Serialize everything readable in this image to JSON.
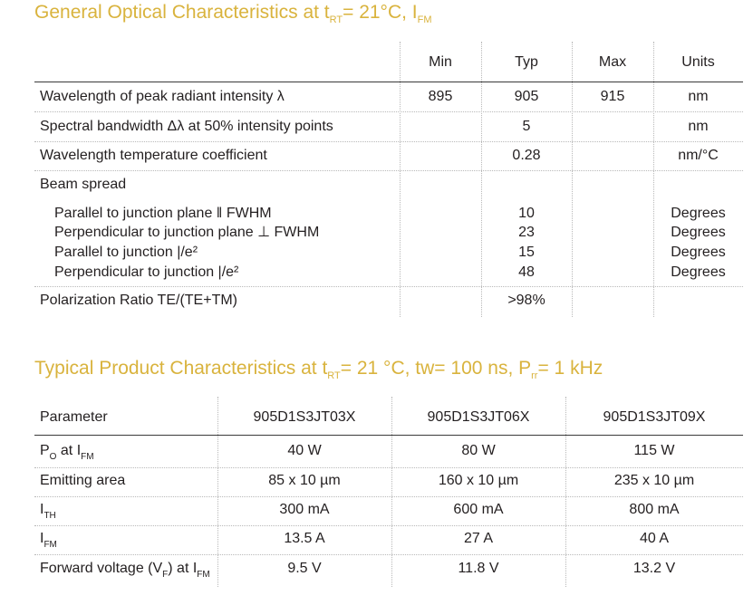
{
  "optical": {
    "title_main": "General Optical Characteristics at t",
    "title_sub1": "RT",
    "title_mid": "= 21°C, I",
    "title_sub2": "FM",
    "headers": {
      "min": "Min",
      "typ": "Typ",
      "max": "Max",
      "units": "Units"
    },
    "rows": [
      {
        "label": "Wavelength of peak radiant intensity λ",
        "min": "895",
        "typ": "905",
        "max": "915",
        "units": "nm"
      },
      {
        "label": "Spectral bandwidth Δλ at 50% intensity points",
        "min": "",
        "typ": "5",
        "max": "",
        "units": "nm"
      },
      {
        "label": "Wavelength temperature coefficient",
        "min": "",
        "typ": "0.28",
        "max": "",
        "units": "nm/°C"
      }
    ],
    "beam": {
      "label": "Beam spread",
      "items": [
        {
          "label": "Parallel to junction plane ‖ FWHM",
          "typ": "10",
          "units": "Degrees"
        },
        {
          "label": "Perpendicular to junction plane ⊥ FWHM",
          "typ": "23",
          "units": "Degrees"
        },
        {
          "label": "Parallel to junction  |/e²",
          "typ": "15",
          "units": "Degrees"
        },
        {
          "label": "Perpendicular to junction  |/e²",
          "typ": "48",
          "units": "Degrees"
        }
      ]
    },
    "polarization": {
      "label": "Polarization Ratio TE/(TE+TM)",
      "typ": ">98%"
    }
  },
  "product": {
    "title_main": "Typical Product Characteristics at t",
    "title_sub1": "RT",
    "title_mid": "= 21 °C, tw= 100 ns, P",
    "title_sub2": "rr",
    "title_end": "= 1 kHz",
    "headers": [
      "Parameter",
      "905D1S3JT03X",
      "905D1S3JT06X",
      "905D1S3JT09X"
    ],
    "rows": [
      {
        "p_main": "P",
        "p_sub": "O",
        "p_mid": " at I",
        "p_sub2": "FM",
        "p_end": "",
        "p_sub3": "",
        "values": [
          "40 W",
          "80 W",
          "115 W"
        ]
      },
      {
        "p_main": "Emitting area",
        "p_sub": "",
        "p_mid": "",
        "p_sub2": "",
        "p_end": "",
        "p_sub3": "",
        "values": [
          "85 x 10 µm",
          "160 x 10 µm",
          "235 x 10 µm"
        ]
      },
      {
        "p_main": "I",
        "p_sub": "TH",
        "p_mid": "",
        "p_sub2": "",
        "p_end": "",
        "p_sub3": "",
        "values": [
          "300 mA",
          "600 mA",
          "800 mA"
        ]
      },
      {
        "p_main": "I",
        "p_sub": "FM",
        "p_mid": "",
        "p_sub2": "",
        "p_end": "",
        "p_sub3": "",
        "values": [
          "13.5 A",
          "27 A",
          "40 A"
        ]
      },
      {
        "p_main": "Forward voltage (V",
        "p_sub": "F",
        "p_mid": ") at I",
        "p_sub2": "FM",
        "p_end": "",
        "p_sub3": "",
        "values": [
          "9.5 V",
          "11.8 V",
          "13.2 V"
        ]
      }
    ]
  },
  "colors": {
    "title": "#d9b33d",
    "text": "#231f20",
    "rule": "#3a3a3a",
    "dotted": "#b9b9b9"
  }
}
